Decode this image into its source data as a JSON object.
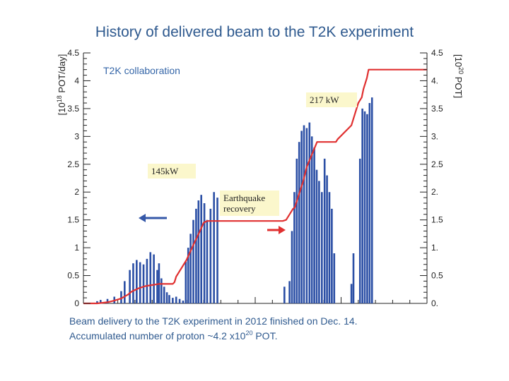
{
  "title": "History of delivered beam to the T2K experiment",
  "collaboration": "T2K collaboration",
  "annotations": {
    "p145": "145kW",
    "p217": "217 kW",
    "earthquake_line1": "Earthquake",
    "earthquake_line2": "recovery"
  },
  "footer": {
    "line1": "Beam delivery to the T2K experiment in 2012 finished on Dec. 14.",
    "line2_before": "Accumulated number of proton ~4.2 x10",
    "line2_exp": "20",
    "line2_after": " POT."
  },
  "colors": {
    "title": "#2f5a8f",
    "bars": "#2b4fa5",
    "cumulative": "#e03030",
    "arrow_left": "#3558a8",
    "arrow_right": "#e03030",
    "note_bg": "#fbf7cc"
  },
  "chart_data": {
    "type": "bar",
    "left_axis": {
      "title_base": "[10",
      "title_exp": "18",
      "title_rest": " POT/day]",
      "ylim": [
        0,
        4.5
      ],
      "tick_labels": [
        "0",
        "0.5",
        "1",
        "1.5",
        "2",
        "2.5",
        "3",
        "3.5",
        "4",
        "4.5"
      ]
    },
    "right_axis": {
      "title_base": "[10",
      "title_exp": "20",
      "title_rest": " POT]",
      "ylim": [
        0,
        4.5
      ],
      "tick_labels": [
        "0.",
        "0.5",
        "1.",
        "1.5",
        "2.",
        "2.5",
        "3.",
        "3.5",
        "4.",
        "4.5"
      ]
    },
    "xlim": [
      0,
      100
    ],
    "series": [
      {
        "role": "daily POT",
        "style": "bars",
        "x": [
          4,
          5,
          7,
          9,
          11,
          12,
          13.5,
          14.5,
          15.5,
          16.5,
          17.5,
          18.5,
          19.5,
          20.5,
          21.5,
          22,
          22.7,
          23.5,
          24.3,
          25,
          26,
          27,
          28,
          29,
          29.8,
          30.5,
          31.2,
          32,
          32.8,
          33.5,
          34.3,
          35.2,
          36,
          37,
          38,
          39,
          58.5,
          60,
          60.7,
          61.4,
          62.1,
          62.8,
          63.5,
          64.2,
          65,
          65.8,
          66.5,
          67.2,
          67.9,
          68.6,
          69.4,
          70.2,
          70.9,
          71.6,
          72.3,
          73,
          78,
          78.6,
          80.5,
          81.2,
          81.9,
          82.6,
          83.3,
          84
        ],
        "y": [
          0.04,
          0.06,
          0.08,
          0.12,
          0.22,
          0.4,
          0.6,
          0.72,
          0.78,
          0.74,
          0.7,
          0.8,
          0.92,
          0.88,
          0.6,
          0.72,
          0.45,
          0.3,
          0.2,
          0.15,
          0.1,
          0.12,
          0.08,
          0.05,
          0.75,
          1.0,
          1.25,
          1.5,
          1.7,
          1.85,
          1.95,
          1.8,
          1.5,
          1.7,
          2.0,
          1.9,
          0.3,
          0.4,
          1.3,
          2.0,
          2.6,
          2.9,
          3.1,
          3.2,
          3.15,
          3.25,
          3.0,
          2.8,
          2.4,
          2.2,
          2.0,
          2.6,
          2.3,
          2.0,
          1.7,
          0.9,
          0.35,
          0.9,
          2.6,
          3.5,
          3.45,
          3.4,
          3.6,
          3.7
        ]
      },
      {
        "role": "accumulated POT",
        "style": "line",
        "x": [
          0,
          4,
          7,
          9,
          11,
          13,
          14,
          16,
          18,
          22,
          23,
          24,
          25,
          26,
          26.5,
          27,
          30,
          32,
          34,
          35,
          36,
          38,
          39,
          58,
          59,
          60,
          61,
          61.5,
          64,
          65,
          68,
          73.5,
          74,
          78,
          80,
          80.5,
          81,
          81.5,
          82.5,
          83,
          100
        ],
        "y": [
          0,
          0,
          0.02,
          0.05,
          0.09,
          0.16,
          0.21,
          0.27,
          0.31,
          0.35,
          0.35,
          0.35,
          0.35,
          0.35,
          0.38,
          0.48,
          0.78,
          1.05,
          1.31,
          1.45,
          1.48,
          1.48,
          1.48,
          1.48,
          1.5,
          1.6,
          1.7,
          1.72,
          2.2,
          2.45,
          2.9,
          2.9,
          2.95,
          3.2,
          3.6,
          3.65,
          3.7,
          3.85,
          4.05,
          4.2,
          4.2
        ]
      }
    ]
  }
}
